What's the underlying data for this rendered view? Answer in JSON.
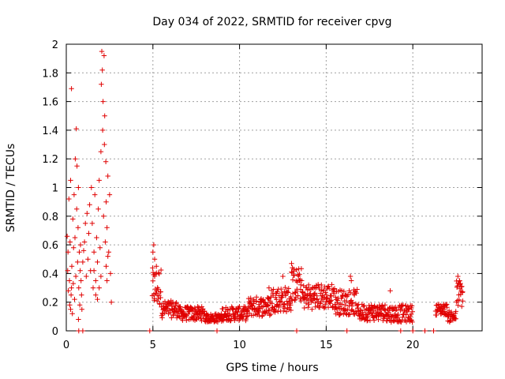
{
  "chart_data": {
    "type": "scatter",
    "title": "Day 034 of 2022, SRMTID for receiver cpvg",
    "xlabel": "GPS time / hours",
    "ylabel": "SRMTID / TECUs",
    "xlim": [
      0,
      24
    ],
    "ylim": [
      0,
      2
    ],
    "xticks": [
      0,
      5,
      10,
      15,
      20
    ],
    "yticks": [
      0,
      0.2,
      0.4,
      0.6,
      0.8,
      1,
      1.2,
      1.4,
      1.6,
      1.8,
      2
    ],
    "grid": true,
    "marker": "+",
    "color": "#e00000",
    "series": [
      {
        "name": "SRMTID",
        "points": [
          [
            0.05,
            0.66
          ],
          [
            0.08,
            0.42
          ],
          [
            0.1,
            0.55
          ],
          [
            0.12,
            0.28
          ],
          [
            0.15,
            0.92
          ],
          [
            0.18,
            0.35
          ],
          [
            0.2,
            0.18
          ],
          [
            0.22,
            0.62
          ],
          [
            0.25,
            1.05
          ],
          [
            0.28,
            0.25
          ],
          [
            0.3,
            1.69
          ],
          [
            0.32,
            0.45
          ],
          [
            0.35,
            0.12
          ],
          [
            0.38,
            0.78
          ],
          [
            0.4,
            0.33
          ],
          [
            0.42,
            0.58
          ],
          [
            0.45,
            0.95
          ],
          [
            0.48,
            0.22
          ],
          [
            0.5,
            0.65
          ],
          [
            0.52,
            1.2
          ],
          [
            0.55,
            0.38
          ],
          [
            0.58,
            1.41
          ],
          [
            0.6,
            0.85
          ],
          [
            0.62,
            1.15
          ],
          [
            0.65,
            0.48
          ],
          [
            0.68,
            0.72
          ],
          [
            0.7,
            1.0
          ],
          [
            0.72,
            0.3
          ],
          [
            0.75,
            0.55
          ],
          [
            0.78,
            0.18
          ],
          [
            0.8,
            0.42
          ],
          [
            0.82,
            0.6
          ],
          [
            0.85,
            0.35
          ],
          [
            0.88,
            0.25
          ],
          [
            0.9,
            0.15
          ],
          [
            0.95,
            0.48
          ],
          [
            1.0,
            0.56
          ],
          [
            1.05,
            0.62
          ],
          [
            1.1,
            0.75
          ],
          [
            1.15,
            0.38
          ],
          [
            1.2,
            0.82
          ],
          [
            1.25,
            0.5
          ],
          [
            1.3,
            0.68
          ],
          [
            1.35,
            0.88
          ],
          [
            1.4,
            0.42
          ],
          [
            1.45,
            1.0
          ],
          [
            1.5,
            0.75
          ],
          [
            1.55,
            0.3
          ],
          [
            1.6,
            0.55
          ],
          [
            1.65,
            0.95
          ],
          [
            1.7,
            0.35
          ],
          [
            1.75,
            0.65
          ],
          [
            1.8,
            0.48
          ],
          [
            1.85,
            0.85
          ],
          [
            1.9,
            1.05
          ],
          [
            1.95,
            0.58
          ],
          [
            2.0,
            1.25
          ],
          [
            2.02,
            1.72
          ],
          [
            2.05,
            1.95
          ],
          [
            2.08,
            1.82
          ],
          [
            2.1,
            1.4
          ],
          [
            2.12,
            1.6
          ],
          [
            2.15,
            0.8
          ],
          [
            2.18,
            1.92
          ],
          [
            2.2,
            1.3
          ],
          [
            2.22,
            1.5
          ],
          [
            2.25,
            0.62
          ],
          [
            2.28,
            1.18
          ],
          [
            2.3,
            0.9
          ],
          [
            2.35,
            0.72
          ],
          [
            2.4,
            1.08
          ],
          [
            2.45,
            0.55
          ],
          [
            2.5,
            0.95
          ],
          [
            2.55,
            0.4
          ],
          [
            2.6,
            0.2
          ],
          [
            2.3,
            0.45
          ],
          [
            2.35,
            0.35
          ],
          [
            2.4,
            0.52
          ],
          [
            2.0,
            0.38
          ],
          [
            1.9,
            0.3
          ],
          [
            1.8,
            0.22
          ],
          [
            1.7,
            0.25
          ],
          [
            1.6,
            0.42
          ],
          [
            0.3,
            0.3
          ],
          [
            0.25,
            0.15
          ],
          [
            0.7,
            0.08
          ],
          [
            0.95,
            0.0
          ],
          [
            0.72,
            0.0
          ],
          [
            4.82,
            0.0
          ],
          [
            8.7,
            0.0
          ],
          [
            13.3,
            0.0
          ],
          [
            16.2,
            0.0
          ],
          [
            19.3,
            0.0
          ],
          [
            20.0,
            0.0
          ],
          [
            20.7,
            0.0
          ],
          [
            21.2,
            0.0
          ]
        ],
        "segments": [
          {
            "from": 4.95,
            "to": 5.5,
            "base": 0.3,
            "amp": 0.14
          },
          {
            "from": 5.5,
            "to": 6.5,
            "base": 0.15,
            "amp": 0.06
          },
          {
            "from": 6.5,
            "to": 8.0,
            "base": 0.12,
            "amp": 0.05
          },
          {
            "from": 8.0,
            "to": 9.0,
            "base": 0.09,
            "amp": 0.03
          },
          {
            "from": 9.0,
            "to": 10.5,
            "base": 0.12,
            "amp": 0.05
          },
          {
            "from": 10.5,
            "to": 11.8,
            "base": 0.17,
            "amp": 0.07
          },
          {
            "from": 11.8,
            "to": 13.0,
            "base": 0.22,
            "amp": 0.09
          },
          {
            "from": 13.0,
            "to": 13.6,
            "base": 0.32,
            "amp": 0.12
          },
          {
            "from": 13.6,
            "to": 15.5,
            "base": 0.24,
            "amp": 0.09
          },
          {
            "from": 15.5,
            "to": 16.8,
            "base": 0.2,
            "amp": 0.09
          },
          {
            "from": 16.8,
            "to": 18.5,
            "base": 0.13,
            "amp": 0.06
          },
          {
            "from": 18.5,
            "to": 20.0,
            "base": 0.12,
            "amp": 0.06
          },
          {
            "from": 21.3,
            "to": 22.0,
            "base": 0.15,
            "amp": 0.04
          },
          {
            "from": 22.0,
            "to": 22.5,
            "base": 0.1,
            "amp": 0.04
          },
          {
            "from": 22.5,
            "to": 22.9,
            "base": 0.26,
            "amp": 0.1
          }
        ],
        "peaks": [
          [
            5.05,
            0.6
          ],
          [
            5.0,
            0.55
          ],
          [
            5.1,
            0.5
          ],
          [
            5.2,
            0.45
          ],
          [
            11.7,
            0.3
          ],
          [
            12.5,
            0.38
          ],
          [
            13.0,
            0.47
          ],
          [
            13.05,
            0.44
          ],
          [
            16.4,
            0.38
          ],
          [
            16.45,
            0.35
          ],
          [
            18.7,
            0.28
          ],
          [
            22.6,
            0.38
          ],
          [
            22.7,
            0.35
          ]
        ]
      }
    ]
  }
}
